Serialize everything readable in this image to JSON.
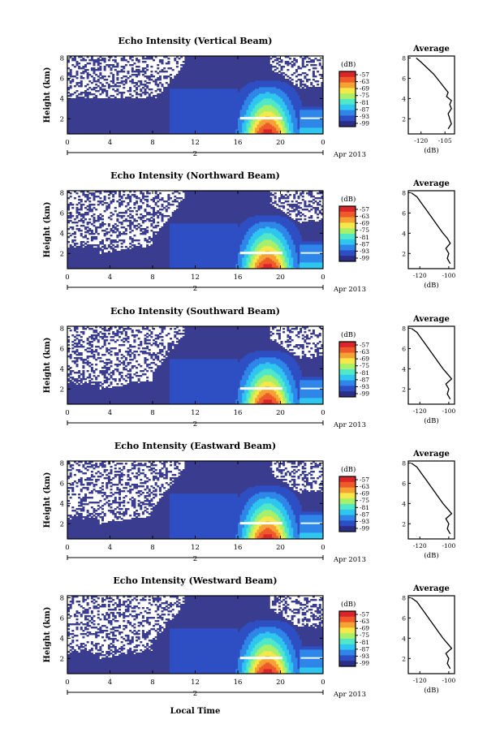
{
  "figure": {
    "xaxis_title": "Local Time",
    "date_label": "Apr 2013",
    "day_label": "2",
    "colorbar_unit": "(dB)",
    "colorbar_ticks": [
      "-57",
      "-63",
      "-69",
      "-75",
      "-81",
      "-87",
      "-93",
      "-99"
    ],
    "colors": {
      "background_echo": "#3a3d8f",
      "colormap": [
        "#2b2f86",
        "#2e4fc4",
        "#2f86e8",
        "#2fc6ef",
        "#50e8c8",
        "#a8f06a",
        "#f5e84a",
        "#f5a235",
        "#ee5a2a",
        "#d9262a"
      ]
    }
  },
  "chart_data": [
    {
      "type": "heatmap",
      "title": "Echo Intensity (Vertical Beam)",
      "xlabel": "",
      "ylabel": "Height (km)",
      "x_ticks": [
        "0",
        "4",
        "8",
        "12",
        "16",
        "20",
        "0"
      ],
      "xlim": [
        0,
        24
      ],
      "y_ticks": [
        "2",
        "4",
        "6",
        "8"
      ],
      "ylim": [
        0.5,
        8.2
      ],
      "colorbar": {
        "label": "(dB)",
        "range": [
          -99,
          -57
        ]
      },
      "profile": {
        "title": "Average",
        "xlabel": "(dB)",
        "x_ticks": [
          "-120",
          "-105"
        ],
        "xlim": [
          -128,
          -99
        ],
        "ylim": [
          0.5,
          8.2
        ],
        "y_ticks": [
          "2",
          "4",
          "6",
          "8"
        ],
        "points": [
          [
            -103,
            1.0
          ],
          [
            -101,
            1.5
          ],
          [
            -102,
            2.0
          ],
          [
            -103,
            2.5
          ],
          [
            -101,
            3.0
          ],
          [
            -102,
            3.4
          ],
          [
            -101,
            3.8
          ],
          [
            -104,
            4.2
          ],
          [
            -103,
            4.6
          ],
          [
            -106,
            5.2
          ],
          [
            -109,
            5.8
          ],
          [
            -112,
            6.4
          ],
          [
            -116,
            7.0
          ],
          [
            -120,
            7.6
          ],
          [
            -123,
            8.0
          ]
        ]
      }
    },
    {
      "type": "heatmap",
      "title": "Echo Intensity (Northward Beam)",
      "xlabel": "",
      "ylabel": "Height (km)",
      "x_ticks": [
        "0",
        "4",
        "8",
        "12",
        "16",
        "20",
        "0"
      ],
      "xlim": [
        0,
        24
      ],
      "y_ticks": [
        "2",
        "4",
        "6",
        "8"
      ],
      "ylim": [
        0.5,
        8.2
      ],
      "colorbar": {
        "label": "(dB)",
        "range": [
          -99,
          -57
        ]
      },
      "profile": {
        "title": "Average",
        "xlabel": "(dB)",
        "x_ticks": [
          "-120",
          "-100"
        ],
        "xlim": [
          -128,
          -96
        ],
        "ylim": [
          0.5,
          8.2
        ],
        "y_ticks": [
          "2",
          "4",
          "6",
          "8"
        ],
        "points": [
          [
            -99,
            1.0
          ],
          [
            -101,
            1.5
          ],
          [
            -100,
            2.0
          ],
          [
            -102,
            2.5
          ],
          [
            -99,
            3.0
          ],
          [
            -101,
            3.5
          ],
          [
            -104,
            4.0
          ],
          [
            -107,
            4.6
          ],
          [
            -110,
            5.2
          ],
          [
            -113,
            5.8
          ],
          [
            -116,
            6.4
          ],
          [
            -119,
            7.0
          ],
          [
            -122,
            7.6
          ],
          [
            -126,
            8.0
          ]
        ]
      }
    },
    {
      "type": "heatmap",
      "title": "Echo Intensity (Southward Beam)",
      "xlabel": "",
      "ylabel": "Height (km)",
      "x_ticks": [
        "0",
        "4",
        "8",
        "12",
        "16",
        "20",
        "0"
      ],
      "xlim": [
        0,
        24
      ],
      "y_ticks": [
        "2",
        "4",
        "6",
        "8"
      ],
      "ylim": [
        0.5,
        8.2
      ],
      "colorbar": {
        "label": "(dB)",
        "range": [
          -99,
          -57
        ]
      },
      "profile": {
        "title": "Average",
        "xlabel": "(dB)",
        "x_ticks": [
          "-120",
          "-100"
        ],
        "xlim": [
          -128,
          -96
        ],
        "ylim": [
          0.5,
          8.2
        ],
        "y_ticks": [
          "2",
          "4",
          "6",
          "8"
        ],
        "points": [
          [
            -99,
            1.0
          ],
          [
            -101,
            1.5
          ],
          [
            -100,
            2.0
          ],
          [
            -102,
            2.5
          ],
          [
            -98,
            3.0
          ],
          [
            -101,
            3.5
          ],
          [
            -104,
            4.0
          ],
          [
            -107,
            4.6
          ],
          [
            -110,
            5.2
          ],
          [
            -113,
            5.8
          ],
          [
            -116,
            6.4
          ],
          [
            -119,
            7.0
          ],
          [
            -122,
            7.6
          ],
          [
            -126,
            8.0
          ]
        ]
      }
    },
    {
      "type": "heatmap",
      "title": "Echo Intensity (Eastward Beam)",
      "xlabel": "",
      "ylabel": "Height (km)",
      "x_ticks": [
        "0",
        "4",
        "8",
        "12",
        "16",
        "20",
        "0"
      ],
      "xlim": [
        0,
        24
      ],
      "y_ticks": [
        "2",
        "4",
        "6",
        "8"
      ],
      "ylim": [
        0.5,
        8.2
      ],
      "colorbar": {
        "label": "(dB)",
        "range": [
          -99,
          -57
        ]
      },
      "profile": {
        "title": "Average",
        "xlabel": "(dB)",
        "x_ticks": [
          "-120",
          "-100"
        ],
        "xlim": [
          -128,
          -96
        ],
        "ylim": [
          0.5,
          8.2
        ],
        "y_ticks": [
          "2",
          "4",
          "6",
          "8"
        ],
        "points": [
          [
            -99,
            1.0
          ],
          [
            -101,
            1.5
          ],
          [
            -100,
            2.0
          ],
          [
            -102,
            2.5
          ],
          [
            -98,
            3.0
          ],
          [
            -101,
            3.5
          ],
          [
            -104,
            4.0
          ],
          [
            -107,
            4.6
          ],
          [
            -110,
            5.2
          ],
          [
            -113,
            5.8
          ],
          [
            -116,
            6.4
          ],
          [
            -119,
            7.0
          ],
          [
            -122,
            7.6
          ],
          [
            -126,
            8.0
          ]
        ]
      }
    },
    {
      "type": "heatmap",
      "title": "Echo Intensity (Westward Beam)",
      "xlabel": "Local Time",
      "ylabel": "Height (km)",
      "x_ticks": [
        "0",
        "4",
        "8",
        "12",
        "16",
        "20",
        "0"
      ],
      "xlim": [
        0,
        24
      ],
      "y_ticks": [
        "2",
        "4",
        "6",
        "8"
      ],
      "ylim": [
        0.5,
        8.2
      ],
      "colorbar": {
        "label": "(dB)",
        "range": [
          -99,
          -57
        ]
      },
      "profile": {
        "title": "Average",
        "xlabel": "(dB)",
        "x_ticks": [
          "-120",
          "-100"
        ],
        "xlim": [
          -128,
          -96
        ],
        "ylim": [
          0.5,
          8.2
        ],
        "y_ticks": [
          "2",
          "4",
          "6",
          "8"
        ],
        "points": [
          [
            -99,
            1.0
          ],
          [
            -101,
            1.5
          ],
          [
            -100,
            2.0
          ],
          [
            -102,
            2.5
          ],
          [
            -98,
            3.0
          ],
          [
            -101,
            3.5
          ],
          [
            -104,
            4.0
          ],
          [
            -107,
            4.6
          ],
          [
            -110,
            5.2
          ],
          [
            -113,
            5.8
          ],
          [
            -116,
            6.4
          ],
          [
            -119,
            7.0
          ],
          [
            -122,
            7.6
          ],
          [
            -126,
            8.0
          ]
        ]
      }
    }
  ]
}
